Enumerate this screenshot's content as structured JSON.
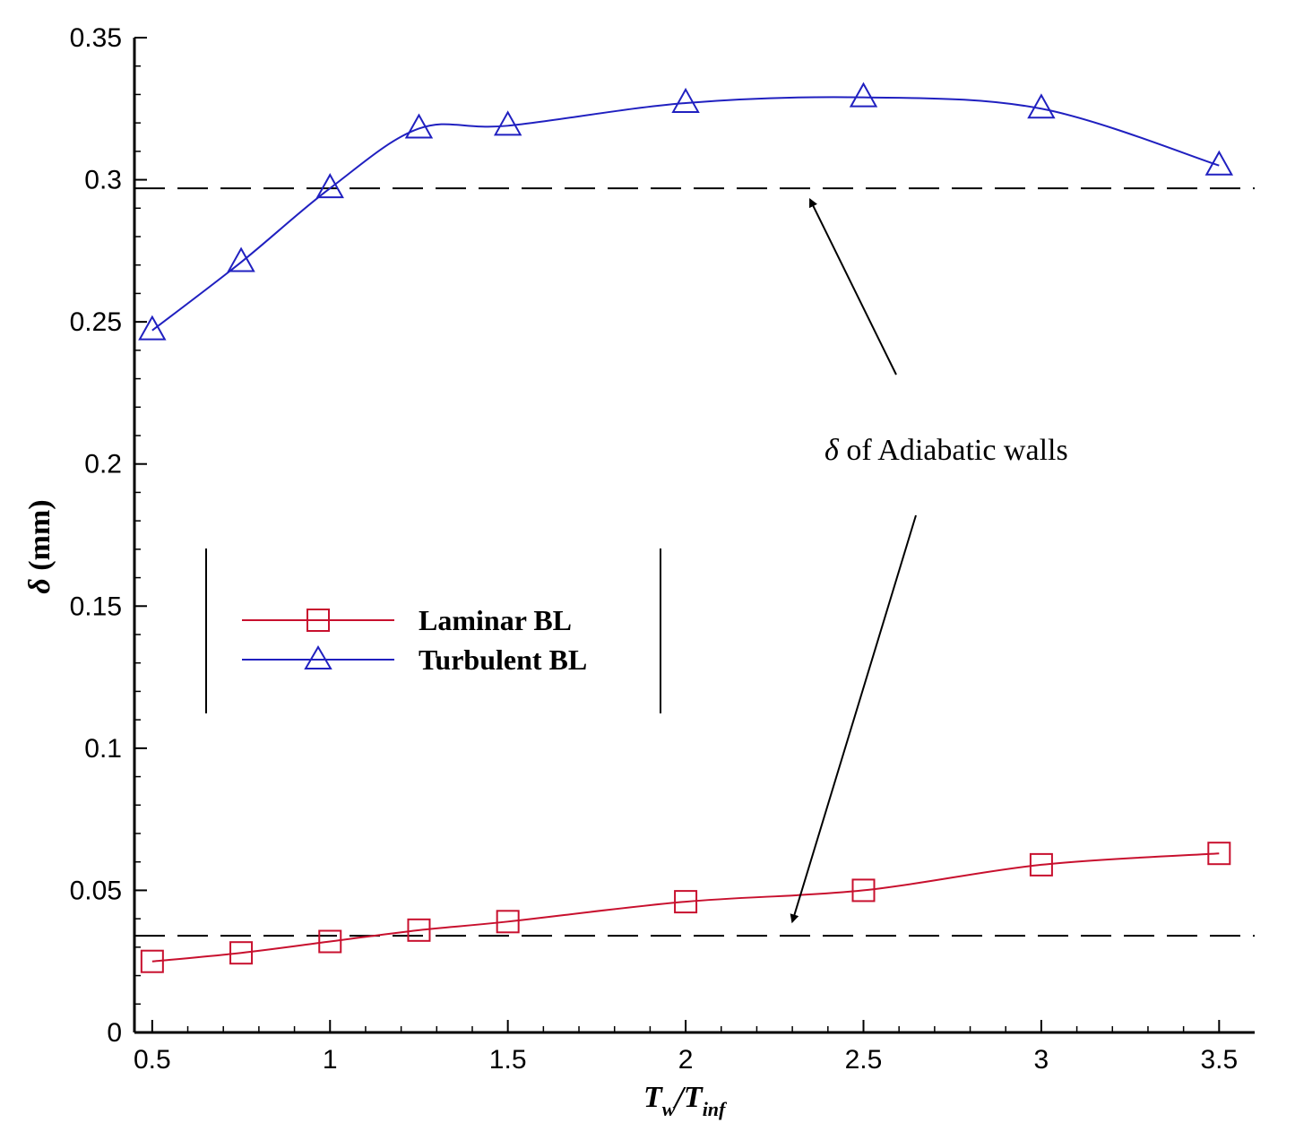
{
  "chart_data": {
    "type": "line",
    "xlabel": {
      "main": "T",
      "sub1": "w",
      "sep": "/T",
      "sub2": "inf"
    },
    "ylabel": {
      "symbol": "δ",
      "unit": " (mm)"
    },
    "xlim": [
      0.45,
      3.6
    ],
    "ylim": [
      0,
      0.35
    ],
    "xticks": [
      0.5,
      1,
      1.5,
      2,
      2.5,
      3,
      3.5
    ],
    "xtick_labels": [
      "0.5",
      "1",
      "1.5",
      "2",
      "2.5",
      "3",
      "3.5"
    ],
    "yticks": [
      0,
      0.05,
      0.1,
      0.15,
      0.2,
      0.25,
      0.3,
      0.35
    ],
    "ytick_labels": [
      "0",
      "0.05",
      "0.1",
      "0.15",
      "0.2",
      "0.25",
      "0.3",
      "0.35"
    ],
    "grid": false,
    "legend_position": "center-left",
    "series": [
      {
        "name": "Laminar BL",
        "color": "#c8102e",
        "marker": "square",
        "x": [
          0.5,
          0.75,
          1.0,
          1.25,
          1.5,
          2.0,
          2.5,
          3.0,
          3.5
        ],
        "y": [
          0.025,
          0.028,
          0.032,
          0.036,
          0.039,
          0.046,
          0.05,
          0.059,
          0.063
        ]
      },
      {
        "name": "Turbulent BL",
        "color": "#2020c0",
        "marker": "triangle",
        "x": [
          0.5,
          0.75,
          1.0,
          1.25,
          1.5,
          2.0,
          2.5,
          3.0,
          3.5
        ],
        "y": [
          0.247,
          0.271,
          0.297,
          0.318,
          0.319,
          0.327,
          0.329,
          0.325,
          0.305
        ]
      }
    ],
    "reference_lines": [
      {
        "y": 0.297,
        "style": "dashed",
        "color": "#000000"
      },
      {
        "y": 0.034,
        "style": "dashed",
        "color": "#000000"
      }
    ],
    "annotation": {
      "symbol": "δ",
      "text": " of Adiabatic walls",
      "arrow_targets": [
        {
          "x": 2.35,
          "y": 0.293
        },
        {
          "x": 2.3,
          "y": 0.039
        }
      ]
    }
  }
}
